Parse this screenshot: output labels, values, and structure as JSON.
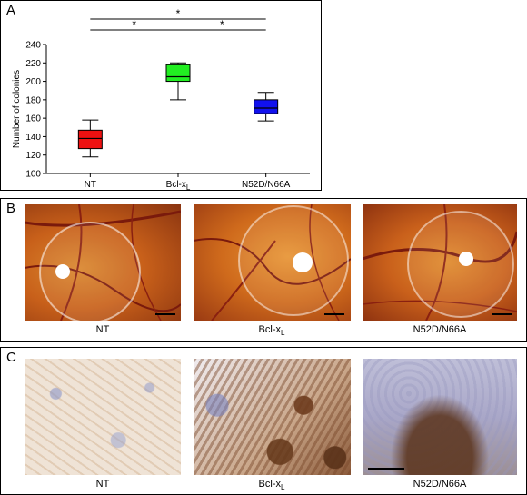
{
  "panels": {
    "a": {
      "label": "A"
    },
    "b": {
      "label": "B",
      "captions": [
        "NT",
        "Bcl-x",
        "N52D/N66A"
      ],
      "subscripts": [
        "",
        "L",
        ""
      ]
    },
    "c": {
      "label": "C",
      "captions": [
        "NT",
        "Bcl-x",
        "N52D/N66A"
      ],
      "subscripts": [
        "",
        "L",
        ""
      ]
    }
  },
  "chart_data": {
    "type": "boxplot",
    "ylabel": "Number of colonies",
    "ylim": [
      100,
      240
    ],
    "yticks": [
      100,
      120,
      140,
      160,
      180,
      200,
      220,
      240
    ],
    "categories": [
      "NT",
      "Bcl-x",
      "N52D/N66A"
    ],
    "category_subscripts": [
      "",
      "L",
      ""
    ],
    "boxes": [
      {
        "name": "NT",
        "min": 118,
        "q1": 127,
        "median": 138,
        "q3": 147,
        "max": 158,
        "color": "#ee1111"
      },
      {
        "name": "Bcl-xL",
        "min": 180,
        "q1": 200,
        "median": 205,
        "q3": 218,
        "max": 220,
        "color": "#22ee22"
      },
      {
        "name": "N52D/N66A",
        "min": 157,
        "q1": 165,
        "median": 171,
        "q3": 180,
        "max": 188,
        "color": "#1111ee"
      }
    ],
    "significance": [
      {
        "from": 0,
        "to": 2,
        "label": "*"
      },
      {
        "from": 0,
        "to": 1,
        "label": "*"
      },
      {
        "from": 1,
        "to": 2,
        "label": "*"
      }
    ]
  }
}
